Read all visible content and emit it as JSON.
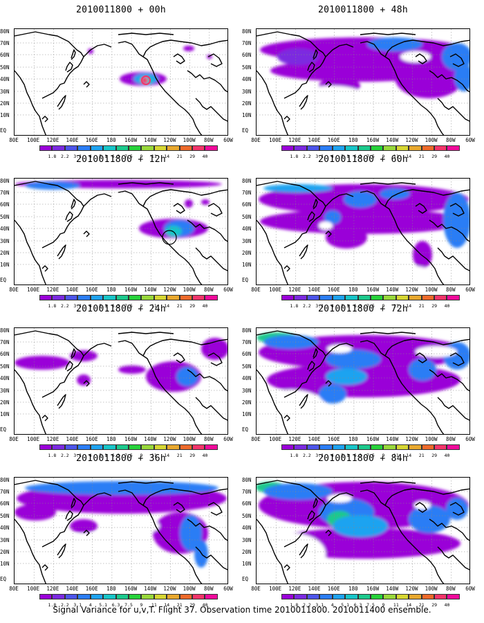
{
  "caption": "Signal Variance for u,v,T. Flight 37. Observation time 2010011800. 2010011400 ensemble.",
  "y_axis_labels": [
    "80N",
    "70N",
    "60N",
    "50N",
    "40N",
    "30N",
    "20N",
    "10N",
    "EQ"
  ],
  "x_axis_labels": [
    "80E",
    "100E",
    "120E",
    "140E",
    "160E",
    "180",
    "160W",
    "140W",
    "120W",
    "100W",
    "80W",
    "60W"
  ],
  "legend": {
    "levels": [
      "1.8",
      "2.2",
      "3.1",
      "4",
      "5.1",
      "6.3",
      "7.5",
      "9",
      "11",
      "14",
      "21",
      "29",
      "40"
    ],
    "colors": [
      "#9a00d8",
      "#7b2ae0",
      "#4d55ea",
      "#2b7df5",
      "#1fa3f0",
      "#18c5c8",
      "#1cc98c",
      "#27d23a",
      "#98d83a",
      "#d6d632",
      "#e8a82e",
      "#ee6a2a",
      "#f2356a",
      "#ef0a9a"
    ]
  },
  "panels": [
    {
      "title": "2010011800 + 00h"
    },
    {
      "title": "2010011800 + 48h"
    },
    {
      "title": "2010011800 + 12h"
    },
    {
      "title": "2010011800 + 60h"
    },
    {
      "title": "2010011800 + 24h"
    },
    {
      "title": "2010011800 + 72h"
    },
    {
      "title": "2010011800 + 36h"
    },
    {
      "title": "2010011800 + 84h"
    }
  ]
}
